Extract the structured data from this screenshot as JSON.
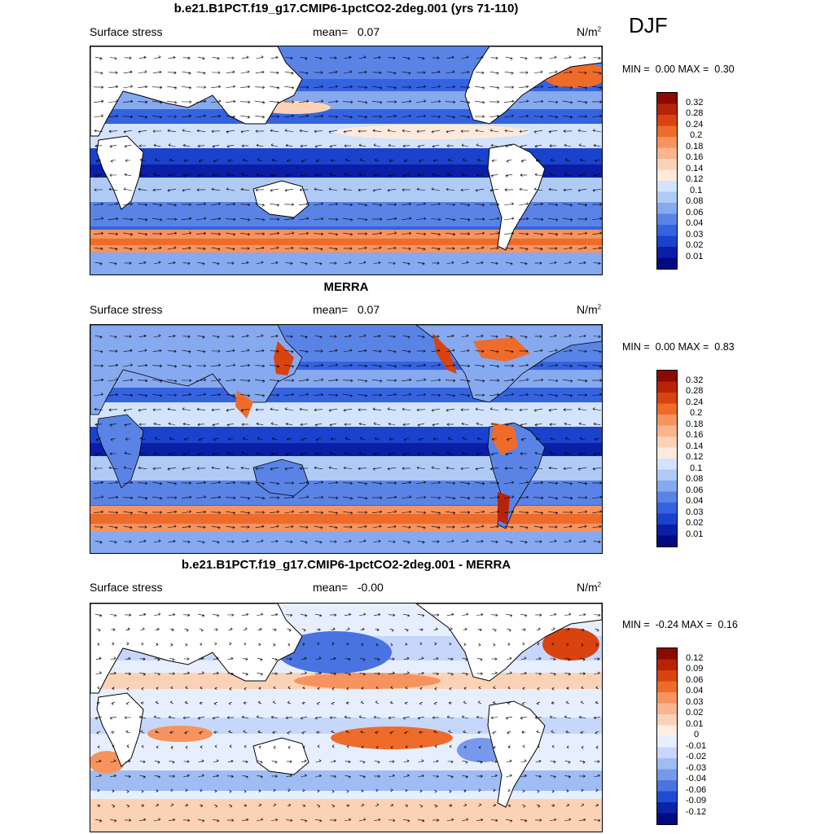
{
  "season": "DJF",
  "panels": [
    {
      "title": "b.e21.B1PCT.f19_g17.CMIP6-1pctCO2-2deg.001 (yrs 71-110)",
      "variable": "Surface stress",
      "mean_label": "mean=",
      "mean_value": "0.07",
      "units": "N/m",
      "units_sup": "2",
      "min_label": "MIN =",
      "min_value": "0.00",
      "max_label": "MAX =",
      "max_value": "0.30",
      "colorbar_levels": [
        "0.32",
        "0.28",
        "0.24",
        "0.2",
        "0.18",
        "0.16",
        "0.14",
        "0.12",
        "0.1",
        "0.08",
        "0.06",
        "0.04",
        "0.03",
        "0.02",
        "0.01"
      ]
    },
    {
      "title": "MERRA",
      "variable": "Surface stress",
      "mean_label": "mean=",
      "mean_value": "0.07",
      "units": "N/m",
      "units_sup": "2",
      "min_label": "MIN =",
      "min_value": "0.00",
      "max_label": "MAX =",
      "max_value": "0.83",
      "colorbar_levels": [
        "0.32",
        "0.28",
        "0.24",
        "0.2",
        "0.18",
        "0.16",
        "0.14",
        "0.12",
        "0.1",
        "0.08",
        "0.06",
        "0.04",
        "0.03",
        "0.02",
        "0.01"
      ]
    },
    {
      "title": "b.e21.B1PCT.f19_g17.CMIP6-1pctCO2-2deg.001 - MERRA",
      "variable": "Surface stress",
      "mean_label": "mean=",
      "mean_value": "-0.00",
      "units": "N/m",
      "units_sup": "2",
      "min_label": "MIN =",
      "min_value": "-0.24",
      "max_label": "MAX =",
      "max_value": "0.16",
      "colorbar_levels": [
        "0.12",
        "0.09",
        "0.06",
        "0.04",
        "0.03",
        "0.02",
        "0.01",
        "0",
        "-0.01",
        "-0.02",
        "-0.03",
        "-0.04",
        "-0.06",
        "-0.09",
        "-0.12"
      ]
    }
  ],
  "colors": {
    "seq_scale": [
      "#8b0a00",
      "#b82207",
      "#d8430f",
      "#ef6b2a",
      "#f7935f",
      "#fab48f",
      "#fcd2b7",
      "#fdeadd",
      "#d3e3fb",
      "#b0caf6",
      "#86a9ef",
      "#5a83e6",
      "#3563e0",
      "#1a42cc",
      "#0a1fa6",
      "#000a82"
    ],
    "div_scale": [
      "#8b0a00",
      "#b82207",
      "#d8430f",
      "#ef6b2a",
      "#f7935f",
      "#fab48f",
      "#fcd2b7",
      "#fdeee4",
      "#e7efff",
      "#c6d7fb",
      "#9fbcf4",
      "#7699ec",
      "#4a73e2",
      "#1f4bd2",
      "#0a22a8",
      "#000a82"
    ],
    "land": "#ffffff",
    "coast": "#000000"
  }
}
